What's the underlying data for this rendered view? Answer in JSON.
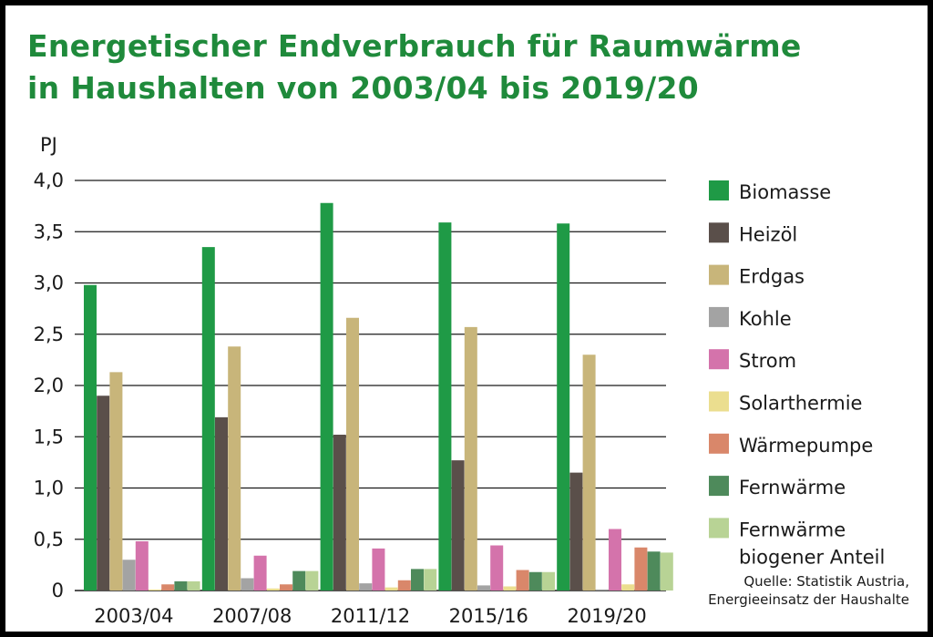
{
  "title": {
    "line1": "Energetischer Endverbrauch für Raumwärme",
    "line2": "in Haushalten von 2003/04 bis 2019/20"
  },
  "source": {
    "line1": "Quelle: Statistik Austria,",
    "line2": "Energieeinsatz der Haushalte"
  },
  "chart_data": {
    "type": "bar",
    "title": "Energetischer Endverbrauch für Raumwärme in Haushalten von 2003/04 bis 2019/20",
    "ylabel": "PJ",
    "xlabel": "",
    "ylim": [
      0,
      4.0
    ],
    "yticks": [
      "0",
      "0,5",
      "1,0",
      "1,5",
      "2,0",
      "2,5",
      "3,0",
      "3,5",
      "4,0"
    ],
    "grid": true,
    "legend_position": "right",
    "categories": [
      "2003/04",
      "2007/08",
      "2011/12",
      "2015/16",
      "2019/20"
    ],
    "series": [
      {
        "name": "Biomasse",
        "color": "#1f9a46",
        "values": [
          2.98,
          3.35,
          3.78,
          3.59,
          3.58
        ]
      },
      {
        "name": "Heizöl",
        "color": "#5a4f4a",
        "values": [
          1.9,
          1.69,
          1.52,
          1.27,
          1.15
        ]
      },
      {
        "name": "Erdgas",
        "color": "#c8b57a",
        "values": [
          2.13,
          2.38,
          2.66,
          2.57,
          2.3
        ]
      },
      {
        "name": "Kohle",
        "color": "#a3a3a3",
        "values": [
          0.3,
          0.12,
          0.07,
          0.05,
          0.01
        ]
      },
      {
        "name": "Strom",
        "color": "#d473ab",
        "values": [
          0.48,
          0.34,
          0.41,
          0.44,
          0.6
        ]
      },
      {
        "name": "Solarthermie",
        "color": "#ebde8f",
        "values": [
          0.01,
          0.02,
          0.03,
          0.04,
          0.06
        ]
      },
      {
        "name": "Wärmepumpe",
        "color": "#d9876a",
        "values": [
          0.06,
          0.06,
          0.1,
          0.2,
          0.42
        ]
      },
      {
        "name": "Fernwärme",
        "color": "#4e8a5b",
        "values": [
          0.09,
          0.19,
          0.21,
          0.18,
          0.38
        ]
      },
      {
        "name": "Fernwärme\nbiogener Anteil",
        "color": "#b8d395",
        "values": [
          0.09,
          0.19,
          0.21,
          0.18,
          0.37
        ]
      }
    ]
  }
}
